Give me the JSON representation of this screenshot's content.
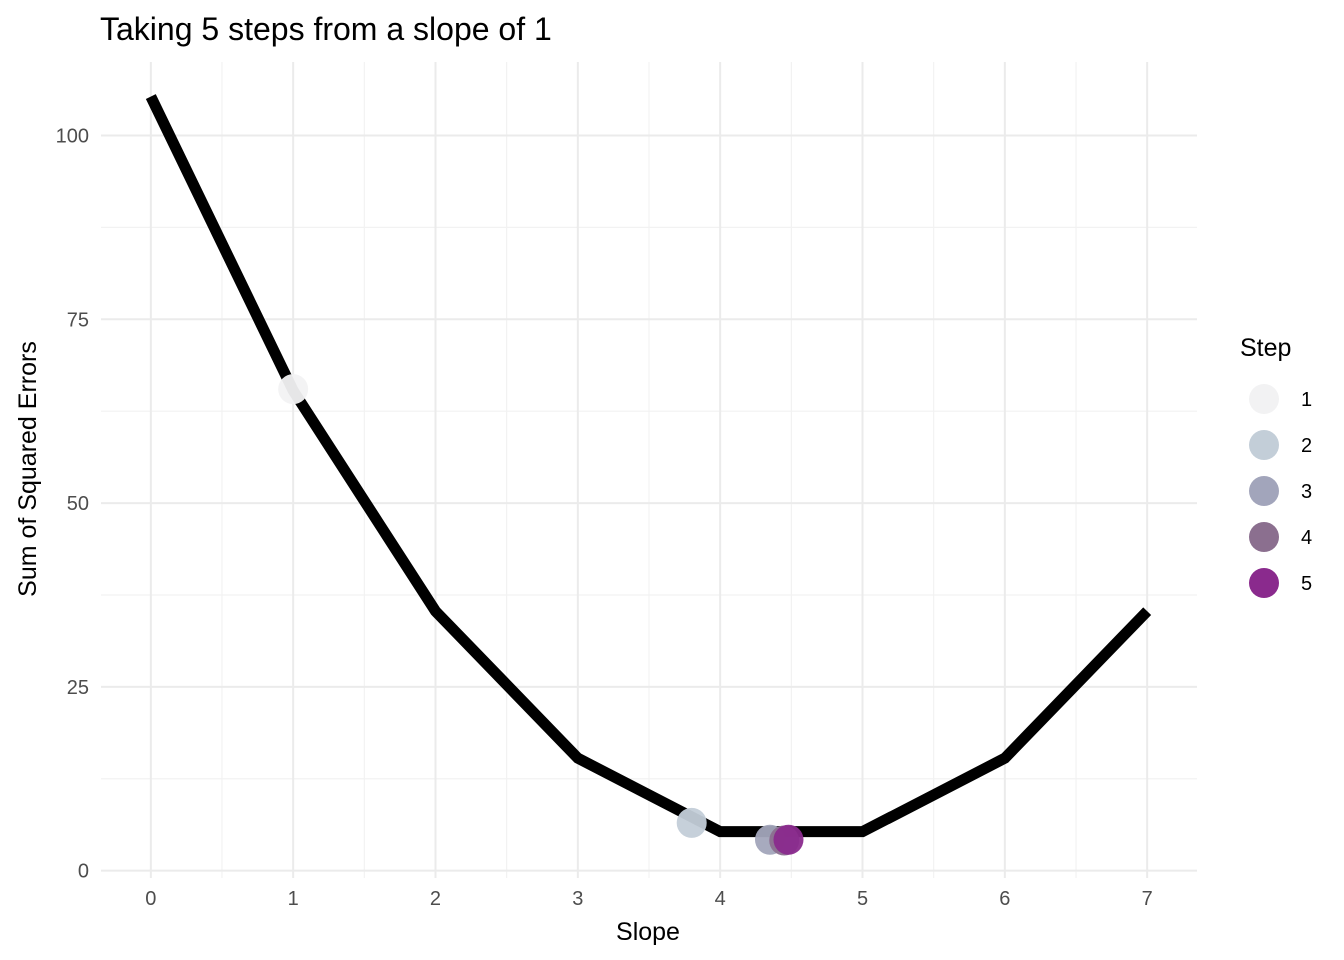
{
  "chart_data": {
    "type": "line",
    "title": "Taking 5 steps from a slope of 1",
    "xlabel": "Slope",
    "ylabel": "Sum of Squared Errors",
    "xlim": [
      -0.35,
      7.35
    ],
    "ylim": [
      -1,
      110
    ],
    "x_ticks": [
      0,
      1,
      2,
      3,
      4,
      5,
      6,
      7
    ],
    "y_ticks": [
      0,
      25,
      50,
      75,
      100
    ],
    "grid": true,
    "line_color": "#000000",
    "series": [
      {
        "x": [
          0,
          1,
          2,
          3,
          4,
          5,
          6,
          7
        ],
        "y": [
          105.3,
          65.3,
          35.3,
          15.3,
          5.3,
          5.3,
          15.3,
          35.3
        ]
      }
    ],
    "points": [
      {
        "step": "1",
        "x": 1.0,
        "y": 65.5,
        "color": "#f2f2f3"
      },
      {
        "step": "2",
        "x": 3.8,
        "y": 6.5,
        "color": "#c3ced8"
      },
      {
        "step": "3",
        "x": 4.35,
        "y": 4.2,
        "color": "#a2a5bb"
      },
      {
        "step": "4",
        "x": 4.45,
        "y": 4.1,
        "color": "#8b6f8f"
      },
      {
        "step": "5",
        "x": 4.48,
        "y": 4.2,
        "color": "#8a2a8d"
      }
    ],
    "legend": {
      "title": "Step",
      "position": "right",
      "items": [
        {
          "label": "1",
          "color": "#f2f2f3"
        },
        {
          "label": "2",
          "color": "#c3ced8"
        },
        {
          "label": "3",
          "color": "#a2a5bb"
        },
        {
          "label": "4",
          "color": "#8b6f8f"
        },
        {
          "label": "5",
          "color": "#8a2a8d"
        }
      ]
    }
  }
}
